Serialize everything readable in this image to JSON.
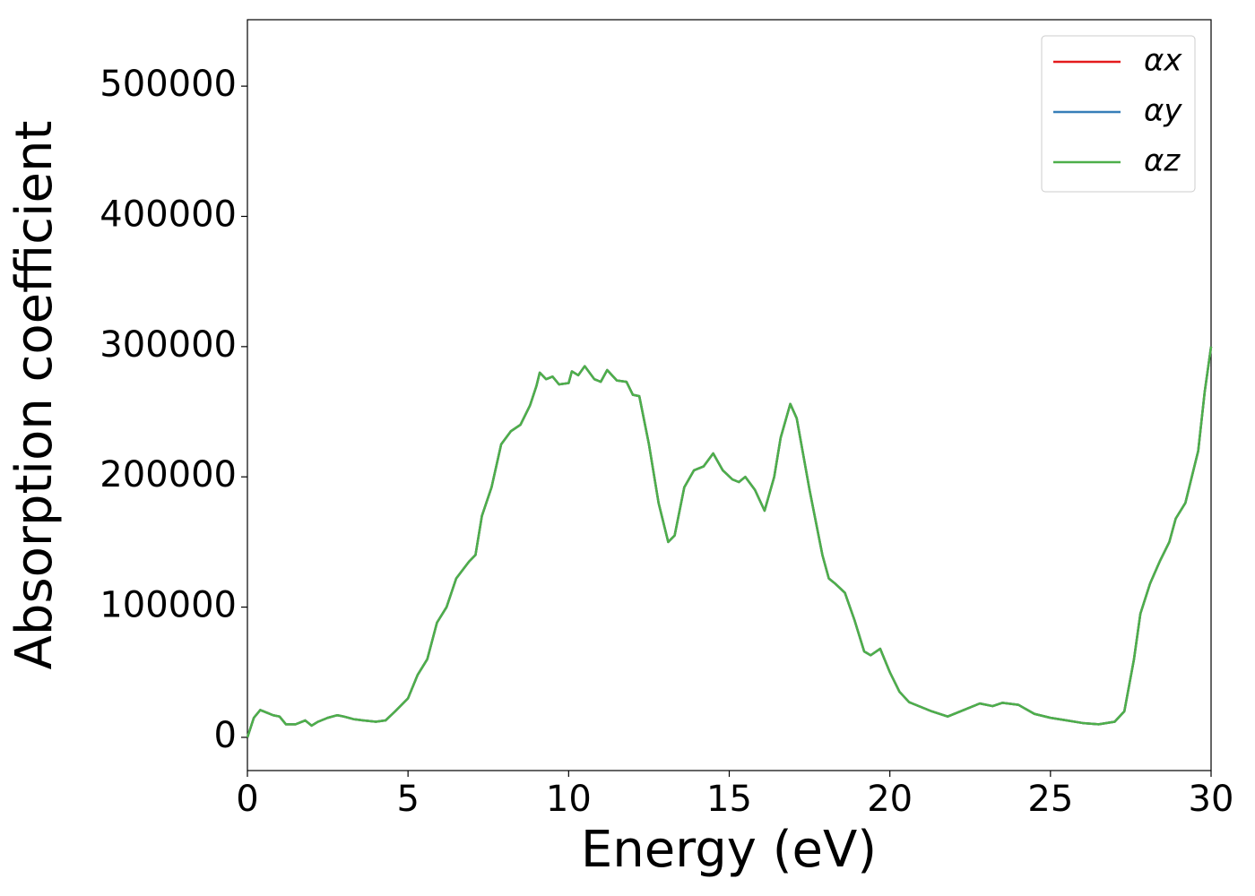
{
  "chart_data": {
    "type": "line",
    "xlabel": "Energy (eV)",
    "ylabel": "Absorption coefficient",
    "x": [
      0,
      0.2,
      0.4,
      0.6,
      0.8,
      1.0,
      1.2,
      1.5,
      1.8,
      2.0,
      2.2,
      2.5,
      2.8,
      3.0,
      3.3,
      3.6,
      4.0,
      4.3,
      4.6,
      5.0,
      5.3,
      5.6,
      5.9,
      6.2,
      6.5,
      6.9,
      7.1,
      7.3,
      7.6,
      7.9,
      8.2,
      8.5,
      8.8,
      9.0,
      9.1,
      9.3,
      9.5,
      9.7,
      10.0,
      10.1,
      10.3,
      10.5,
      10.8,
      11.0,
      11.2,
      11.5,
      11.8,
      12.0,
      12.2,
      12.5,
      12.8,
      13.1,
      13.3,
      13.6,
      13.9,
      14.2,
      14.5,
      14.8,
      15.1,
      15.3,
      15.5,
      15.8,
      16.1,
      16.4,
      16.6,
      16.9,
      17.1,
      17.5,
      17.9,
      18.1,
      18.3,
      18.6,
      18.9,
      19.2,
      19.4,
      19.7,
      20.0,
      20.3,
      20.6,
      21.0,
      21.3,
      21.8,
      22.3,
      22.8,
      23.2,
      23.5,
      24.0,
      24.5,
      25.0,
      25.5,
      26.0,
      26.5,
      27.0,
      27.3,
      27.6,
      27.8,
      28.1,
      28.4,
      28.7,
      28.9,
      29.2,
      29.4,
      29.6,
      29.8,
      30.0
    ],
    "series": [
      {
        "name": "αx",
        "color": "#e41a1c",
        "values": [
          0,
          15000,
          21000,
          19000,
          17000,
          16000,
          10000,
          10000,
          13000,
          9000,
          12000,
          15000,
          17000,
          16000,
          14000,
          13000,
          12000,
          13000,
          20000,
          30000,
          48000,
          60000,
          88000,
          100000,
          122000,
          135000,
          140000,
          170000,
          192000,
          225000,
          235000,
          240000,
          255000,
          270000,
          280000,
          275000,
          277000,
          271000,
          272000,
          281000,
          278000,
          285000,
          275000,
          273000,
          282000,
          274000,
          273000,
          263000,
          262000,
          225000,
          180000,
          150000,
          155000,
          192000,
          205000,
          208000,
          218000,
          205000,
          198000,
          196000,
          200000,
          190000,
          174000,
          200000,
          230000,
          256000,
          245000,
          190000,
          140000,
          122000,
          118000,
          111000,
          90000,
          66000,
          63000,
          68000,
          50000,
          35000,
          27000,
          23000,
          20000,
          16000,
          21000,
          26000,
          24000,
          26500,
          25000,
          18000,
          15000,
          13000,
          11000,
          10000,
          12000,
          20000,
          60000,
          95000,
          118000,
          135000,
          150000,
          168000,
          180000,
          200000,
          220000,
          265000,
          300000
        ]
      },
      {
        "name": "αy",
        "color": "#377eb8",
        "values": [
          0,
          15000,
          21000,
          19000,
          17000,
          16000,
          10000,
          10000,
          13000,
          9000,
          12000,
          15000,
          17000,
          16000,
          14000,
          13000,
          12000,
          13000,
          20000,
          30000,
          48000,
          60000,
          88000,
          100000,
          122000,
          135000,
          140000,
          170000,
          192000,
          225000,
          235000,
          240000,
          255000,
          270000,
          280000,
          275000,
          277000,
          271000,
          272000,
          281000,
          278000,
          285000,
          275000,
          273000,
          282000,
          274000,
          273000,
          263000,
          262000,
          225000,
          180000,
          150000,
          155000,
          192000,
          205000,
          208000,
          218000,
          205000,
          198000,
          196000,
          200000,
          190000,
          174000,
          200000,
          230000,
          256000,
          245000,
          190000,
          140000,
          122000,
          118000,
          111000,
          90000,
          66000,
          63000,
          68000,
          50000,
          35000,
          27000,
          23000,
          20000,
          16000,
          21000,
          26000,
          24000,
          26500,
          25000,
          18000,
          15000,
          13000,
          11000,
          10000,
          12000,
          20000,
          60000,
          95000,
          118000,
          135000,
          150000,
          168000,
          180000,
          200000,
          220000,
          265000,
          300000
        ]
      },
      {
        "name": "αz",
        "color": "#4daf4a",
        "values": [
          0,
          15000,
          21000,
          19000,
          17000,
          16000,
          10000,
          10000,
          13000,
          9000,
          12000,
          15000,
          17000,
          16000,
          14000,
          13000,
          12000,
          13000,
          20000,
          30000,
          48000,
          60000,
          88000,
          100000,
          122000,
          135000,
          140000,
          170000,
          192000,
          225000,
          235000,
          240000,
          255000,
          270000,
          280000,
          275000,
          277000,
          271000,
          272000,
          281000,
          278000,
          285000,
          275000,
          273000,
          282000,
          274000,
          273000,
          263000,
          262000,
          225000,
          180000,
          150000,
          155000,
          192000,
          205000,
          208000,
          218000,
          205000,
          198000,
          196000,
          200000,
          190000,
          174000,
          200000,
          230000,
          256000,
          245000,
          190000,
          140000,
          122000,
          118000,
          111000,
          90000,
          66000,
          63000,
          68000,
          50000,
          35000,
          27000,
          23000,
          20000,
          16000,
          21000,
          26000,
          24000,
          26500,
          25000,
          18000,
          15000,
          13000,
          11000,
          10000,
          12000,
          20000,
          60000,
          95000,
          118000,
          135000,
          150000,
          168000,
          180000,
          200000,
          220000,
          265000,
          300000
        ]
      }
    ],
    "xlim": [
      0,
      30
    ],
    "xticks": [
      0,
      5,
      10,
      15,
      20,
      25,
      30
    ],
    "ylim": [
      -25500,
      551000
    ],
    "yticks": [
      0,
      100000,
      200000,
      300000,
      400000,
      500000
    ],
    "legend": "upper right"
  }
}
